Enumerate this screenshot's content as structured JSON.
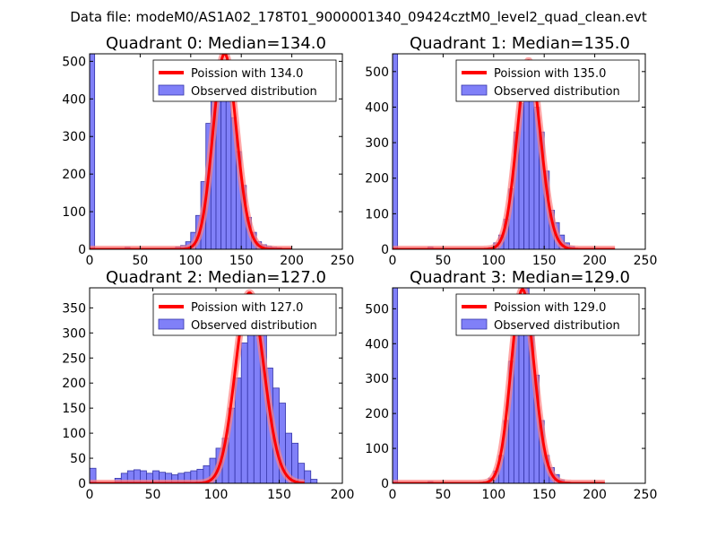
{
  "figure": {
    "suptitle": "Data file: modeM0/AS1A02_178T01_9000001340_09424cztM0_level2_quad_clean.evt"
  },
  "colors": {
    "bar_fill": "#8080f8",
    "bar_edge": "#3535a8",
    "poisson_line": "#ff0000",
    "poisson_glow": "#ff8080",
    "axes": "#000000"
  },
  "chart_data": [
    {
      "type": "bar",
      "title": "Quadrant 0: Median=134.0",
      "xlim": [
        0,
        250
      ],
      "ylim": [
        0,
        520
      ],
      "xticks": [
        0,
        50,
        100,
        150,
        200,
        250
      ],
      "yticks": [
        0,
        100,
        200,
        300,
        400,
        500
      ],
      "median": 134.0,
      "legend": {
        "line_label": "Poission with 134.0",
        "bar_label": "Observed distribution",
        "loc": "upper-right"
      },
      "bin_width": 5,
      "histogram": {
        "bins": [
          0,
          35,
          80,
          85,
          90,
          95,
          100,
          105,
          110,
          115,
          120,
          125,
          130,
          135,
          140,
          145,
          150,
          155,
          160,
          165,
          170,
          175,
          180,
          185,
          190,
          195
        ],
        "counts": [
          520,
          5,
          3,
          6,
          10,
          20,
          45,
          90,
          180,
          335,
          400,
          470,
          450,
          420,
          350,
          260,
          170,
          85,
          45,
          20,
          12,
          8,
          5,
          4,
          2,
          1
        ]
      },
      "poisson_curve": {
        "mean": 134.0,
        "amplitude": 520,
        "x_range": [
          0,
          200
        ]
      }
    },
    {
      "type": "bar",
      "title": "Quadrant 1: Median=135.0",
      "xlim": [
        0,
        250
      ],
      "ylim": [
        0,
        550
      ],
      "xticks": [
        0,
        50,
        100,
        150,
        200,
        250
      ],
      "yticks": [
        0,
        100,
        200,
        300,
        400,
        500
      ],
      "median": 135.0,
      "legend": {
        "line_label": "Poission with 135.0",
        "bar_label": "Observed distribution",
        "loc": "upper-right"
      },
      "bin_width": 5,
      "histogram": {
        "bins": [
          0,
          35,
          95,
          100,
          105,
          110,
          115,
          120,
          125,
          130,
          135,
          140,
          145,
          150,
          155,
          160,
          165,
          170,
          175,
          180
        ],
        "counts": [
          550,
          6,
          5,
          18,
          40,
          85,
          170,
          330,
          410,
          490,
          500,
          400,
          330,
          220,
          110,
          75,
          40,
          18,
          8,
          3
        ]
      },
      "poisson_curve": {
        "mean": 135.0,
        "amplitude": 530,
        "x_range": [
          0,
          220
        ]
      }
    },
    {
      "type": "bar",
      "title": "Quadrant 2: Median=127.0",
      "xlim": [
        0,
        200
      ],
      "ylim": [
        0,
        390
      ],
      "xticks": [
        0,
        50,
        100,
        150,
        200
      ],
      "yticks": [
        0,
        50,
        100,
        150,
        200,
        250,
        300,
        350
      ],
      "median": 127.0,
      "legend": {
        "line_label": "Poission with 127.0",
        "bar_label": "Observed distribution",
        "loc": "upper-right"
      },
      "bin_width": 5,
      "histogram": {
        "bins": [
          0,
          20,
          25,
          30,
          35,
          40,
          45,
          50,
          55,
          60,
          65,
          70,
          75,
          80,
          85,
          90,
          95,
          100,
          105,
          110,
          115,
          120,
          125,
          130,
          135,
          140,
          145,
          150,
          155,
          160,
          165,
          170,
          175
        ],
        "counts": [
          30,
          10,
          20,
          25,
          27,
          25,
          20,
          25,
          22,
          20,
          17,
          20,
          22,
          25,
          28,
          35,
          50,
          70,
          90,
          150,
          210,
          280,
          340,
          350,
          300,
          230,
          190,
          160,
          100,
          80,
          40,
          25,
          8
        ]
      },
      "poisson_curve": {
        "mean": 127.0,
        "amplitude": 380,
        "x_range": [
          0,
          170
        ]
      }
    },
    {
      "type": "bar",
      "title": "Quadrant 3: Median=129.0",
      "xlim": [
        0,
        250
      ],
      "ylim": [
        0,
        560
      ],
      "xticks": [
        0,
        50,
        100,
        150,
        200,
        250
      ],
      "yticks": [
        0,
        100,
        200,
        300,
        400,
        500
      ],
      "median": 129.0,
      "legend": {
        "line_label": "Poission with 129.0",
        "bar_label": "Observed distribution",
        "loc": "upper-right"
      },
      "bin_width": 5,
      "histogram": {
        "bins": [
          0,
          35,
          90,
          95,
          100,
          105,
          110,
          115,
          120,
          125,
          130,
          135,
          140,
          145,
          150,
          155,
          160,
          165,
          170
        ],
        "counts": [
          560,
          5,
          5,
          15,
          35,
          80,
          180,
          350,
          470,
          520,
          570,
          440,
          310,
          180,
          80,
          45,
          25,
          10,
          4
        ]
      },
      "poisson_curve": {
        "mean": 129.0,
        "amplitude": 555,
        "x_range": [
          0,
          210
        ]
      }
    }
  ]
}
